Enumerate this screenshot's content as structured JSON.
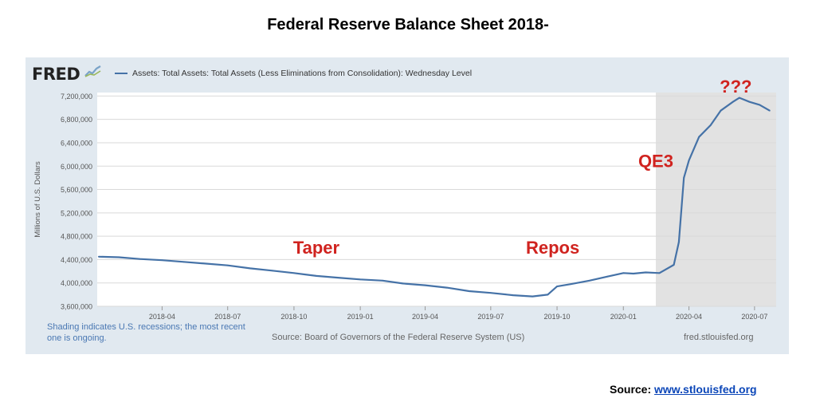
{
  "page": {
    "title": "Federal Reserve Balance Sheet 2018-",
    "source_label": "Source:",
    "source_link": "www.stlouisfed.org"
  },
  "fred": {
    "logo_text": "FRED",
    "logo_icon": "chart-line-icon",
    "shading_note": "Shading indicates U.S. recessions; the most recent one is ongoing.",
    "source_note": "Source: Board of Governors of the Federal Reserve System (US)",
    "site": "fred.stlouisfed.org"
  },
  "colors": {
    "line": "#4572a7",
    "annotation": "#d0231f",
    "recession": "#e2e2e2",
    "panel": "#e1e9f0"
  },
  "chart_data": {
    "type": "line",
    "title": "",
    "xlabel": "",
    "ylabel": "Millions of U.S. Dollars",
    "series": [
      {
        "name": "Assets: Total Assets: Total Assets (Less Eliminations from Consolidation): Wednesday Level",
        "x": [
          "2018-01-03",
          "2018-01-31",
          "2018-03-01",
          "2018-04-01",
          "2018-05-01",
          "2018-06-01",
          "2018-07-01",
          "2018-08-01",
          "2018-09-01",
          "2018-10-01",
          "2018-11-01",
          "2018-12-01",
          "2019-01-01",
          "2019-02-01",
          "2019-03-01",
          "2019-04-01",
          "2019-05-01",
          "2019-06-01",
          "2019-07-01",
          "2019-08-01",
          "2019-08-28",
          "2019-09-18",
          "2019-10-01",
          "2019-10-20",
          "2019-11-15",
          "2019-12-10",
          "2020-01-01",
          "2020-01-15",
          "2020-02-01",
          "2020-02-20",
          "2020-03-11",
          "2020-03-18",
          "2020-03-25",
          "2020-04-01",
          "2020-04-15",
          "2020-05-01",
          "2020-05-15",
          "2020-06-01",
          "2020-06-10",
          "2020-06-24",
          "2020-07-08",
          "2020-07-22"
        ],
        "values": [
          4450000,
          4440000,
          4410000,
          4390000,
          4360000,
          4330000,
          4300000,
          4250000,
          4210000,
          4170000,
          4120000,
          4090000,
          4060000,
          4040000,
          3990000,
          3960000,
          3920000,
          3860000,
          3830000,
          3790000,
          3770000,
          3800000,
          3940000,
          3980000,
          4040000,
          4110000,
          4170000,
          4160000,
          4180000,
          4170000,
          4310000,
          4700000,
          5800000,
          6100000,
          6500000,
          6700000,
          6950000,
          7100000,
          7170000,
          7100000,
          7050000,
          6950000
        ]
      }
    ],
    "y_ticks": [
      "3,600,000",
      "4,000,000",
      "4,400,000",
      "4,800,000",
      "5,200,000",
      "5,600,000",
      "6,000,000",
      "6,400,000",
      "6,800,000",
      "7,200,000"
    ],
    "x_ticks": [
      "2018-04",
      "2018-07",
      "2018-10",
      "2019-01",
      "2019-04",
      "2019-07",
      "2019-10",
      "2020-01",
      "2020-04",
      "2020-07"
    ],
    "ylim": [
      3600000,
      7260000
    ],
    "xlim": [
      "2018-01-01",
      "2020-07-31"
    ],
    "recession": {
      "start": "2020-02-15",
      "end": "2020-07-31"
    },
    "annotations": [
      {
        "text": "Taper",
        "x": "2018-11-01",
        "y": 4500000
      },
      {
        "text": "Repos",
        "x": "2019-09-25",
        "y": 4500000
      },
      {
        "text": "QE3",
        "x": "2020-02-15",
        "y": 5980000
      },
      {
        "text": "???",
        "x": "2020-06-05",
        "y": 7260000
      }
    ],
    "grid": true,
    "legend": "top-left"
  }
}
